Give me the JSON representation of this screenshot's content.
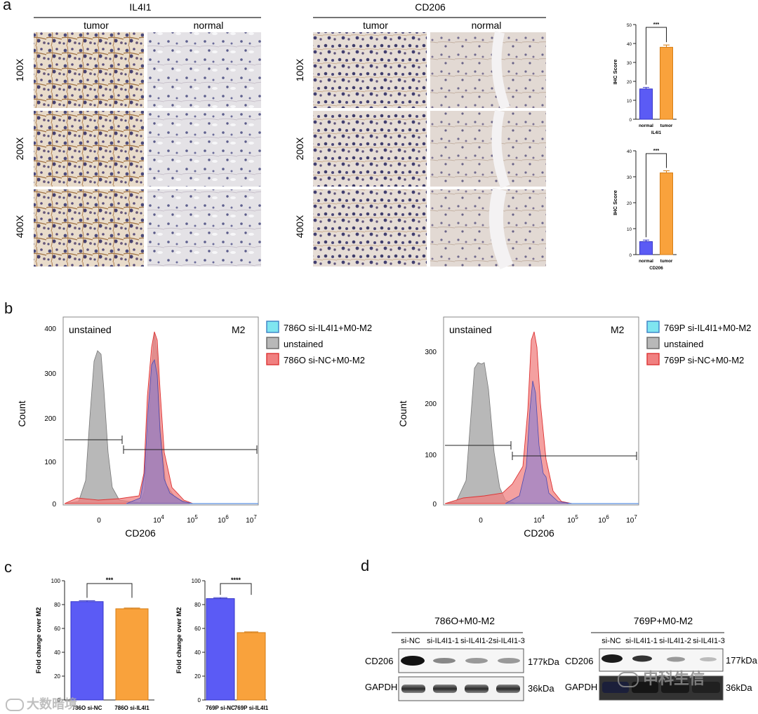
{
  "panels": {
    "a": "a",
    "b": "b",
    "c": "c",
    "d": "d"
  },
  "colors": {
    "blue": "#5b5bf5",
    "orange": "#f9a23c",
    "red_fill": "#f08080",
    "gray_fill": "#b8b8b8",
    "cyan_fill": "#7fe5f0"
  },
  "ihc": {
    "il4i1_title": "IL4I1",
    "cd206_title": "CD206",
    "col_tumor": "tumor",
    "col_normal": "normal",
    "magnifications": [
      "100X",
      "200X",
      "400X"
    ]
  },
  "flow": {
    "left": {
      "legend": [
        "786O si-IL4I1+M0-M2",
        "unstained",
        "786O si-NC+M0-M2"
      ],
      "gate_left": "unstained",
      "gate_right": "M2",
      "ylabel": "Count",
      "xlabel": "CD206",
      "yticks": [
        "400",
        "300",
        "200",
        "100",
        "0"
      ]
    },
    "right": {
      "legend": [
        "769P si-IL4I1+M0-M2",
        "unstained",
        "769P si-NC+M0-M2"
      ],
      "gate_left": "unstained",
      "gate_right": "M2",
      "ylabel": "Count",
      "xlabel": "CD206",
      "yticks": [
        "300",
        "200",
        "100",
        "0"
      ]
    },
    "xtick_zero": "0",
    "xtick_base": "10",
    "xtick_exps": [
      "4",
      "5",
      "6",
      "7"
    ]
  },
  "western": {
    "left": {
      "title": "786O+M0-M2",
      "lanes": [
        "si-NC",
        "si-IL4I1-1",
        "si-IL4I1-2",
        "si-IL4I1-3"
      ],
      "rows": [
        "CD206",
        "GAPDH"
      ],
      "kda": [
        "177kDa",
        "36kDa"
      ]
    },
    "right": {
      "title": "769P+M0-M2",
      "lanes": [
        "si-NC",
        "si-IL4I1-1",
        "si-IL4I1-2",
        "si-IL4I1-3"
      ],
      "rows": [
        "CD206",
        "GAPDH"
      ],
      "kda": [
        "177kDa",
        "36kDa"
      ]
    }
  },
  "watermarks": [
    "大数暗境",
    "申科生信"
  ],
  "chart_data": [
    {
      "type": "bar",
      "title": "",
      "xlabel": "IL4I1",
      "ylabel": "IHC Score",
      "categories": [
        "normal",
        "tumor"
      ],
      "values": [
        16,
        38
      ],
      "errors": [
        0.8,
        1.2
      ],
      "ylim": [
        0,
        50
      ],
      "yticks": [
        0,
        10,
        20,
        30,
        40,
        50
      ],
      "significance": "***"
    },
    {
      "type": "bar",
      "title": "",
      "xlabel": "CD206",
      "ylabel": "IHC Score",
      "categories": [
        "normal",
        "tumor"
      ],
      "values": [
        5,
        31.5
      ],
      "errors": [
        0.6,
        0.8
      ],
      "ylim": [
        0,
        40
      ],
      "yticks": [
        0,
        10,
        20,
        30,
        40
      ],
      "significance": "***"
    },
    {
      "type": "bar",
      "title": "",
      "xlabel": "",
      "ylabel": "Fold change over M2",
      "categories": [
        "786O si-NC",
        "786O si-IL4I1"
      ],
      "values": [
        82.5,
        76.5
      ],
      "errors": [
        0.8,
        0.6
      ],
      "ylim": [
        0,
        100
      ],
      "yticks": [
        0,
        20,
        40,
        60,
        80,
        100
      ],
      "significance": "***"
    },
    {
      "type": "bar",
      "title": "",
      "xlabel": "",
      "ylabel": "Fold change over M2",
      "categories": [
        "769P si-NC",
        "769P si-IL4I1"
      ],
      "values": [
        85,
        56.5
      ],
      "errors": [
        0.8,
        0.6
      ],
      "ylim": [
        0,
        100
      ],
      "yticks": [
        0,
        20,
        40,
        60,
        80,
        100
      ],
      "significance": "****"
    }
  ]
}
